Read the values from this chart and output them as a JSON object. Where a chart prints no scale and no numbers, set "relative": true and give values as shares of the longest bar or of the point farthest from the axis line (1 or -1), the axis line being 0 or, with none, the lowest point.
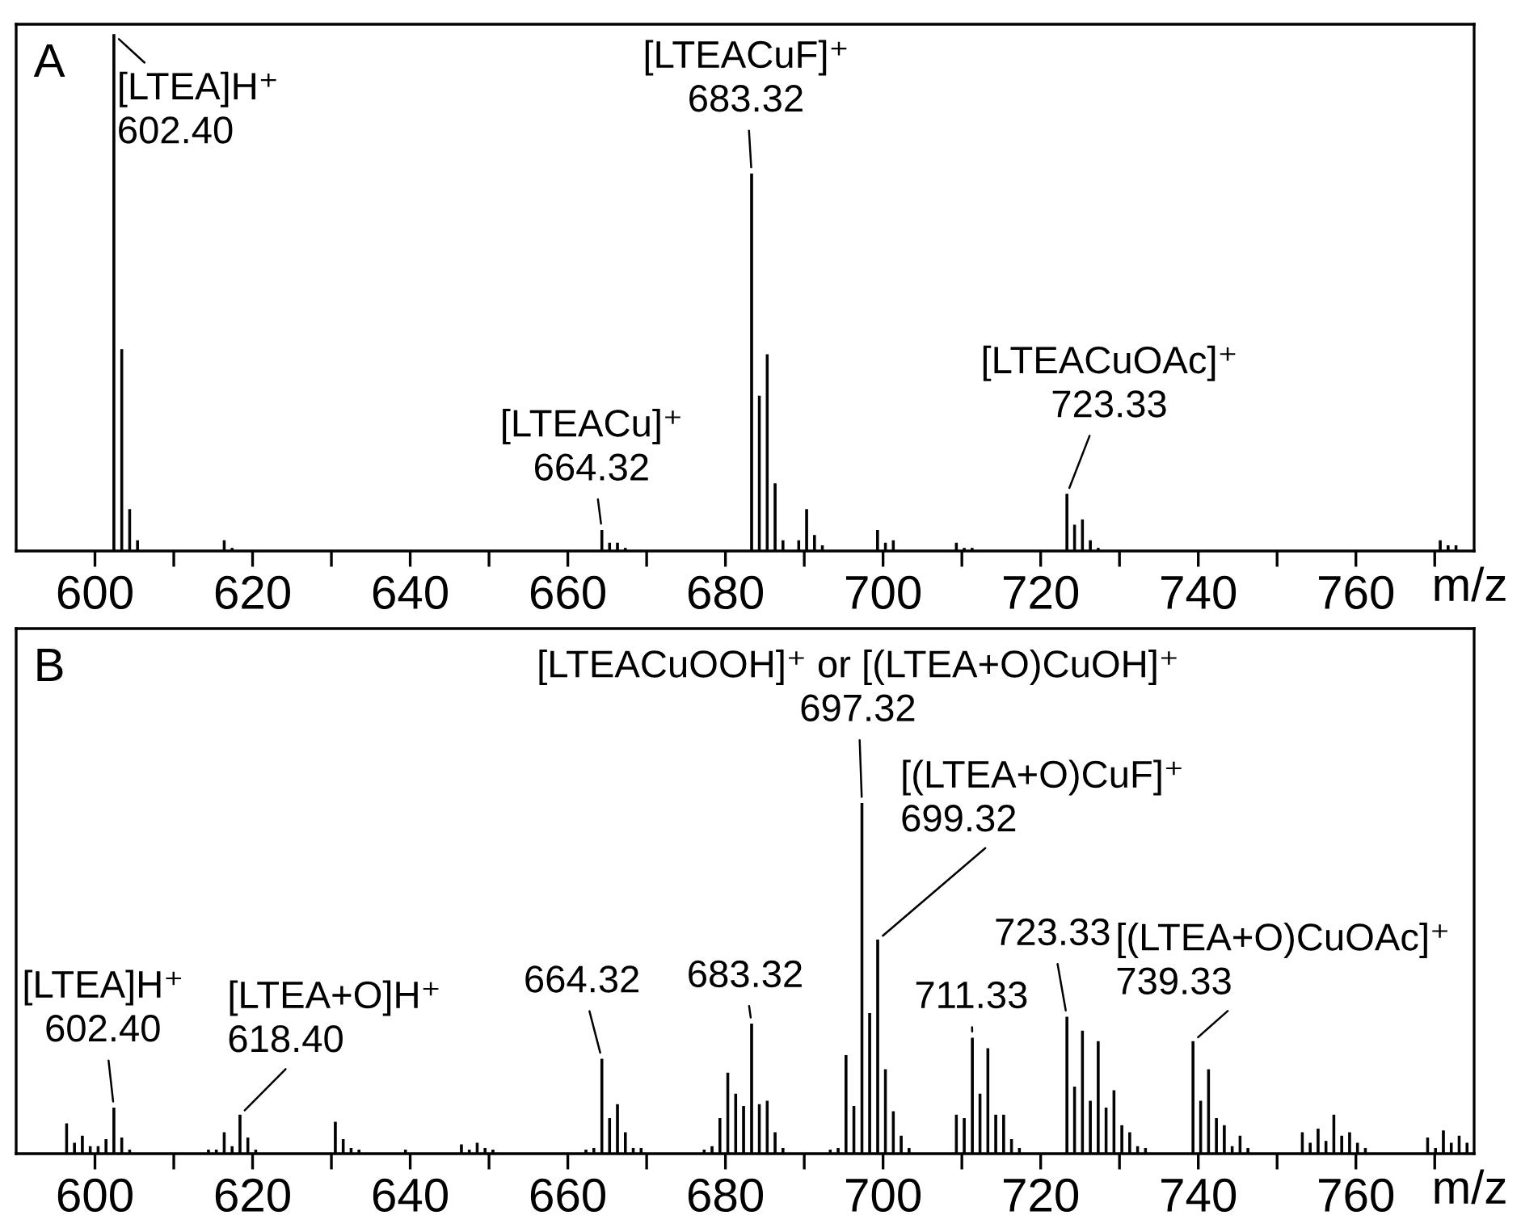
{
  "chart_data": [
    {
      "type": "bar",
      "title": "A",
      "xlabel": "m/z",
      "relative": true,
      "color": "#000000",
      "tick_labels": "x",
      "xlim": [
        590,
        775
      ],
      "xticks": [
        600,
        {
          "value": 610,
          "label": null
        },
        620,
        {
          "value": 630,
          "label": null
        },
        640,
        {
          "value": 650,
          "label": null
        },
        660,
        {
          "value": 670,
          "label": null
        },
        680,
        {
          "value": 690,
          "label": null
        },
        700,
        {
          "value": 710,
          "label": null
        },
        720,
        {
          "value": 730,
          "label": null
        },
        740,
        {
          "value": 750,
          "label": null
        },
        760,
        {
          "value": 770,
          "label": null
        }
      ],
      "x": [
        602.4,
        603.4,
        604.4,
        605.4,
        616.4,
        617.4,
        664.32,
        665.3,
        666.3,
        667.3,
        683.32,
        684.3,
        685.3,
        686.3,
        687.3,
        689.3,
        690.3,
        691.3,
        692.3,
        699.3,
        700.3,
        701.3,
        709.3,
        710.3,
        711.3,
        723.33,
        724.3,
        725.3,
        726.3,
        727.3,
        770.7,
        771.7,
        772.7
      ],
      "values": [
        1.0,
        0.39,
        0.08,
        0.02,
        0.02,
        0.005,
        0.04,
        0.015,
        0.015,
        0.005,
        0.73,
        0.3,
        0.38,
        0.13,
        0.02,
        0.02,
        0.08,
        0.03,
        0.01,
        0.04,
        0.015,
        0.02,
        0.015,
        0.005,
        0.005,
        0.11,
        0.05,
        0.06,
        0.02,
        0.005,
        0.02,
        0.01,
        0.01
      ],
      "annotations": [
        {
          "text": "[LTEA]H⁺\n602.40",
          "x": 602.4,
          "y": 1.0
        },
        {
          "text": "[LTEACuF]⁺\n683.32",
          "x": 683.32,
          "y": 0.73
        },
        {
          "text": "[LTEACu]⁺\n664.32",
          "x": 664.32,
          "y": 0.04
        },
        {
          "text": "[LTEACuOAc]⁺\n723.33",
          "x": 723.33,
          "y": 0.11
        }
      ]
    },
    {
      "type": "bar",
      "title": "B",
      "xlabel": "m/z",
      "relative": true,
      "color": "#000000",
      "tick_labels": "x",
      "xlim": [
        590,
        775
      ],
      "xticks": [
        600,
        {
          "value": 610,
          "label": null
        },
        620,
        {
          "value": 630,
          "label": null
        },
        640,
        {
          "value": 650,
          "label": null
        },
        660,
        {
          "value": 670,
          "label": null
        },
        680,
        {
          "value": 690,
          "label": null
        },
        700,
        {
          "value": 710,
          "label": null
        },
        720,
        {
          "value": 730,
          "label": null
        },
        740,
        {
          "value": 750,
          "label": null
        },
        760,
        {
          "value": 770,
          "label": null
        }
      ],
      "x": [
        596.4,
        597.4,
        598.4,
        599.4,
        600.4,
        601.4,
        602.4,
        603.4,
        604.4,
        614.4,
        615.4,
        616.4,
        617.4,
        618.4,
        619.4,
        620.4,
        630.5,
        631.5,
        632.5,
        633.5,
        639.4,
        646.5,
        647.5,
        648.5,
        649.5,
        650.5,
        662.3,
        663.3,
        664.32,
        665.3,
        666.3,
        667.3,
        668.3,
        669.3,
        677.3,
        678.3,
        679.3,
        680.3,
        681.3,
        682.3,
        683.32,
        684.3,
        685.3,
        686.3,
        687.3,
        693.3,
        694.3,
        695.3,
        696.3,
        697.32,
        698.3,
        699.32,
        700.3,
        701.3,
        702.3,
        703.3,
        709.3,
        710.3,
        711.33,
        712.3,
        713.3,
        714.3,
        715.3,
        716.3,
        717.3,
        723.33,
        724.3,
        725.3,
        726.3,
        727.3,
        728.3,
        729.3,
        730.3,
        731.3,
        732.3,
        733.3,
        739.33,
        740.3,
        741.3,
        742.3,
        743.3,
        744.3,
        745.3,
        746.3,
        753.2,
        754.2,
        755.2,
        756.2,
        757.2,
        758.2,
        759.2,
        760.2,
        761.2,
        769.1,
        770.1,
        771.1,
        772.1,
        773.1,
        774.1
      ],
      "values": [
        0.085,
        0.03,
        0.05,
        0.02,
        0.02,
        0.04,
        0.13,
        0.045,
        0.01,
        0.01,
        0.01,
        0.06,
        0.02,
        0.11,
        0.045,
        0.01,
        0.09,
        0.04,
        0.015,
        0.01,
        0.01,
        0.025,
        0.01,
        0.03,
        0.015,
        0.01,
        0.01,
        0.015,
        0.27,
        0.1,
        0.14,
        0.06,
        0.015,
        0.015,
        0.01,
        0.02,
        0.1,
        0.23,
        0.17,
        0.135,
        0.37,
        0.14,
        0.15,
        0.06,
        0.015,
        0.01,
        0.015,
        0.28,
        0.135,
        1.0,
        0.4,
        0.61,
        0.24,
        0.12,
        0.05,
        0.015,
        0.11,
        0.1,
        0.33,
        0.17,
        0.3,
        0.11,
        0.11,
        0.04,
        0.015,
        0.39,
        0.19,
        0.35,
        0.15,
        0.32,
        0.13,
        0.18,
        0.08,
        0.06,
        0.02,
        0.015,
        0.32,
        0.15,
        0.24,
        0.1,
        0.08,
        0.02,
        0.05,
        0.015,
        0.06,
        0.03,
        0.07,
        0.035,
        0.11,
        0.05,
        0.06,
        0.03,
        0.015,
        0.045,
        0.015,
        0.065,
        0.03,
        0.05,
        0.03
      ],
      "annotations": [
        {
          "text": "[LTEACuOOH]⁺ or [(LTEA+O)CuOH]⁺\n697.32",
          "x": 697.32,
          "y": 1.0
        },
        {
          "text": "[(LTEA+O)CuF]⁺\n699.32",
          "x": 699.32,
          "y": 0.61
        },
        {
          "text": "[LTEA]H⁺\n602.40",
          "x": 602.4,
          "y": 0.13
        },
        {
          "text": "[LTEA+O]H⁺\n618.40",
          "x": 618.4,
          "y": 0.11
        },
        {
          "text": "664.32",
          "x": 664.32,
          "y": 0.27
        },
        {
          "text": "683.32",
          "x": 683.32,
          "y": 0.37
        },
        {
          "text": "711.33",
          "x": 711.33,
          "y": 0.33
        },
        {
          "text": "723.33",
          "x": 723.33,
          "y": 0.39
        },
        {
          "text": "[(LTEA+O)CuOAc]⁺\n739.33",
          "x": 739.33,
          "y": 0.32
        }
      ]
    }
  ]
}
